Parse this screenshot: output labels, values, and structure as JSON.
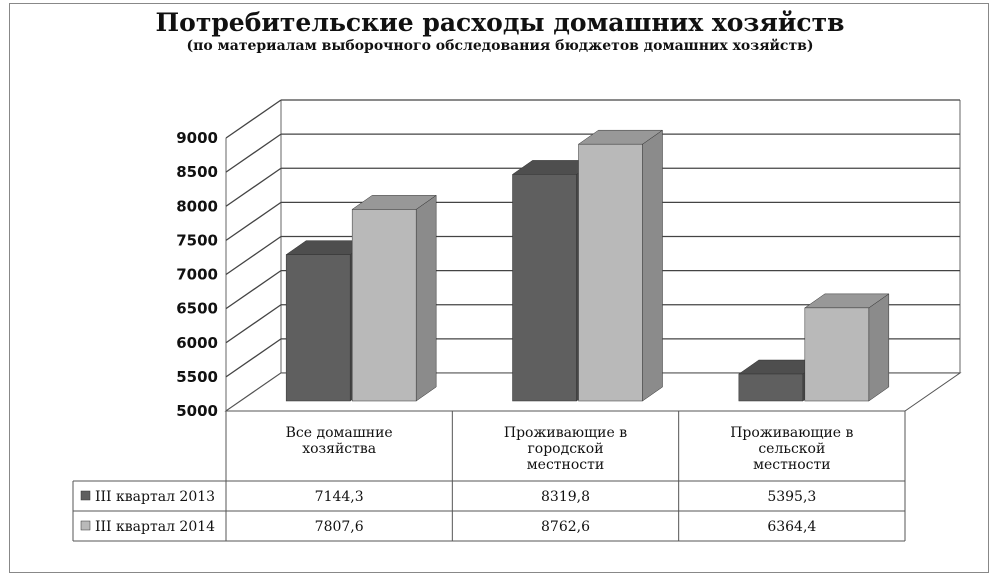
{
  "title": "Потребительские расходы домашних хозяйств",
  "subtitle": "(по материалам выборочного обследования бюджетов домашних хозяйств)",
  "chart_data": {
    "type": "bar",
    "title": "Потребительские расходы домашних хозяйств",
    "subtitle": "(по материалам выборочного обследования бюджетов домашних хозяйств)",
    "categories": [
      [
        "Все домашние",
        "хозяйства"
      ],
      [
        "Проживающие в",
        "городской",
        "местности"
      ],
      [
        "Проживающие в",
        "сельской",
        "местности"
      ]
    ],
    "series": [
      {
        "name": "III квартал 2013",
        "values": [
          7144.3,
          8319.8,
          5395.3
        ],
        "labels": [
          "7144,3",
          "8319,8",
          "5395,3"
        ],
        "color": "#5f5f5f"
      },
      {
        "name": "III квартал 2014",
        "values": [
          7807.6,
          8762.6,
          6364.4
        ],
        "labels": [
          "7807,6",
          "8762,6",
          "6364,4"
        ],
        "color": "#b9b9b9"
      }
    ],
    "ylim": [
      5000,
      9000
    ],
    "yticks": [
      5000,
      5500,
      6000,
      6500,
      7000,
      7500,
      8000,
      8500,
      9000
    ],
    "grid": true,
    "legend": "data-table",
    "style": "3d-column"
  }
}
